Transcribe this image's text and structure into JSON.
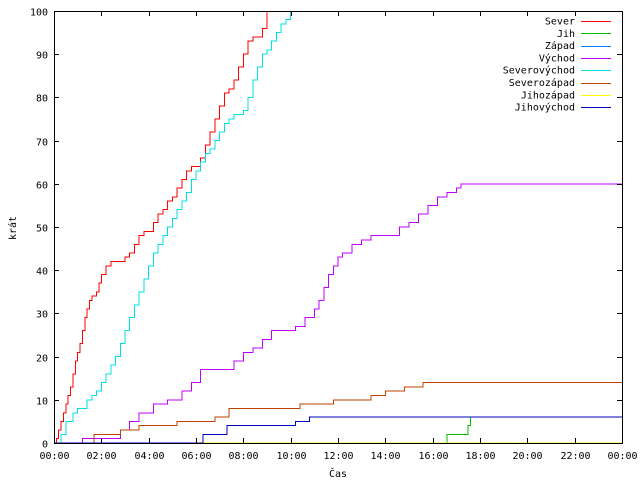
{
  "chart_data": {
    "type": "line",
    "title": "",
    "xlabel": "Čas",
    "ylabel": "krát",
    "xlim": [
      0,
      24
    ],
    "ylim": [
      0,
      100
    ],
    "grid": false,
    "legend_position": "top-right",
    "x_ticks": [
      {
        "value": 0,
        "label": "00:00"
      },
      {
        "value": 2,
        "label": "02:00"
      },
      {
        "value": 4,
        "label": "04:00"
      },
      {
        "value": 6,
        "label": "06:00"
      },
      {
        "value": 8,
        "label": "08:00"
      },
      {
        "value": 10,
        "label": "10:00"
      },
      {
        "value": 12,
        "label": "12:00"
      },
      {
        "value": 14,
        "label": "14:00"
      },
      {
        "value": 16,
        "label": "16:00"
      },
      {
        "value": 18,
        "label": "18:00"
      },
      {
        "value": 20,
        "label": "20:00"
      },
      {
        "value": 22,
        "label": "22:00"
      },
      {
        "value": 24,
        "label": "00:00"
      }
    ],
    "y_ticks": [
      {
        "value": 0,
        "label": "0"
      },
      {
        "value": 10,
        "label": "10"
      },
      {
        "value": 20,
        "label": "20"
      },
      {
        "value": 30,
        "label": "30"
      },
      {
        "value": 40,
        "label": "40"
      },
      {
        "value": 50,
        "label": "50"
      },
      {
        "value": 60,
        "label": "60"
      },
      {
        "value": 70,
        "label": "70"
      },
      {
        "value": 80,
        "label": "80"
      },
      {
        "value": 90,
        "label": "90"
      },
      {
        "value": 100,
        "label": "100"
      }
    ],
    "series": [
      {
        "name": "Sever",
        "color": "#ff0000",
        "step": true,
        "x": [
          0,
          0.1,
          0.2,
          0.3,
          0.4,
          0.5,
          0.6,
          0.7,
          0.8,
          0.9,
          1.0,
          1.1,
          1.2,
          1.3,
          1.4,
          1.5,
          1.6,
          1.7,
          1.8,
          1.9,
          2.0,
          2.2,
          2.4,
          2.6,
          2.8,
          3.0,
          3.2,
          3.4,
          3.6,
          3.8,
          4.0,
          4.2,
          4.4,
          4.6,
          4.8,
          5.0,
          5.2,
          5.4,
          5.6,
          5.8,
          6.0,
          6.2,
          6.4,
          6.6,
          6.8,
          7.0,
          7.2,
          7.4,
          7.6,
          7.8,
          8.0,
          8.2,
          8.4,
          8.6,
          8.8,
          9.0
        ],
        "y": [
          0,
          1,
          3,
          5,
          7,
          9,
          11,
          13,
          16,
          19,
          21,
          23,
          26,
          29,
          31,
          33,
          34,
          34,
          35,
          37,
          39,
          41,
          42,
          42,
          42,
          43,
          44,
          46,
          48,
          49,
          49,
          51,
          53,
          54,
          56,
          57,
          59,
          61,
          63,
          64,
          64,
          66,
          69,
          72,
          75,
          78,
          81,
          82,
          84,
          87,
          90,
          93,
          94,
          94,
          96,
          100
        ]
      },
      {
        "name": "Jih",
        "color": "#00c000",
        "step": true,
        "x": [
          0,
          16.5,
          16.6,
          17.4,
          17.5,
          17.6,
          24
        ],
        "y": [
          0,
          0,
          2,
          2,
          4,
          6,
          6
        ]
      },
      {
        "name": "Západ",
        "color": "#0080ff",
        "step": true,
        "x": [
          0,
          24
        ],
        "y": [
          0,
          0
        ]
      },
      {
        "name": "Východ",
        "color": "#c000ff",
        "step": true,
        "x": [
          0,
          1.2,
          2.2,
          2.8,
          3.2,
          3.6,
          4.2,
          4.8,
          5.4,
          5.8,
          6.2,
          7.4,
          7.6,
          8.0,
          8.4,
          8.8,
          9.2,
          9.8,
          10.2,
          10.6,
          11.0,
          11.2,
          11.4,
          11.6,
          11.8,
          12.0,
          12.2,
          12.6,
          13.0,
          13.4,
          13.8,
          14.2,
          14.6,
          15.0,
          15.4,
          15.8,
          16.2,
          16.6,
          17.0,
          17.2,
          17.4,
          24
        ],
        "y": [
          0,
          1,
          1,
          3,
          5,
          7,
          9,
          10,
          12,
          14,
          17,
          17,
          19,
          21,
          22,
          24,
          26,
          26,
          27,
          29,
          31,
          33,
          36,
          39,
          41,
          43,
          44,
          46,
          47,
          48,
          48,
          48,
          50,
          51,
          53,
          55,
          57,
          58,
          59,
          60,
          60,
          60
        ]
      },
      {
        "name": "Severovýchod",
        "color": "#00e0e0",
        "step": true,
        "x": [
          0,
          0.3,
          0.5,
          0.8,
          1.0,
          1.2,
          1.4,
          1.6,
          1.8,
          2.0,
          2.2,
          2.4,
          2.6,
          2.8,
          3.0,
          3.2,
          3.4,
          3.6,
          3.8,
          4.0,
          4.2,
          4.4,
          4.6,
          4.8,
          5.0,
          5.2,
          5.4,
          5.6,
          5.8,
          6.0,
          6.2,
          6.4,
          6.6,
          6.8,
          7.0,
          7.2,
          7.4,
          7.6,
          7.8,
          8.0,
          8.2,
          8.4,
          8.6,
          8.8,
          9.0,
          9.2,
          9.4,
          9.6,
          9.8,
          10.0
        ],
        "y": [
          0,
          2,
          5,
          7,
          8,
          8,
          10,
          11,
          12,
          14,
          16,
          18,
          20,
          23,
          26,
          29,
          32,
          35,
          38,
          41,
          44,
          46,
          48,
          50,
          52,
          54,
          56,
          58,
          61,
          63,
          65,
          67,
          68,
          70,
          72,
          74,
          75,
          76,
          76,
          77,
          80,
          84,
          87,
          90,
          91,
          93,
          95,
          97,
          98,
          100
        ]
      },
      {
        "name": "Severozápad",
        "color": "#c04000",
        "step": true,
        "x": [
          0,
          1.7,
          2.8,
          3.6,
          4.4,
          5.2,
          6.0,
          6.8,
          7.4,
          8.8,
          9.6,
          10.4,
          11.0,
          11.8,
          12.8,
          13.4,
          14.0,
          14.8,
          15.2,
          15.6,
          16.4,
          17.2,
          24
        ],
        "y": [
          0,
          2,
          3,
          4,
          4,
          5,
          5,
          6,
          8,
          8,
          8,
          9,
          9,
          10,
          10,
          11,
          12,
          13,
          13,
          14,
          14,
          14,
          14
        ]
      },
      {
        "name": "Jihozápad",
        "color": "#ffff00",
        "step": true,
        "x": [
          0,
          24
        ],
        "y": [
          0,
          0
        ]
      },
      {
        "name": "Jihovýchod",
        "color": "#0000c0",
        "step": true,
        "x": [
          0,
          5.7,
          6.3,
          6.9,
          7.3,
          8.2,
          9.3,
          10.2,
          10.8,
          11.4,
          13.0,
          15.2,
          17.4,
          24
        ],
        "y": [
          0,
          0,
          2,
          2,
          4,
          4,
          4,
          5,
          6,
          6,
          6,
          6,
          6,
          6
        ]
      }
    ]
  }
}
